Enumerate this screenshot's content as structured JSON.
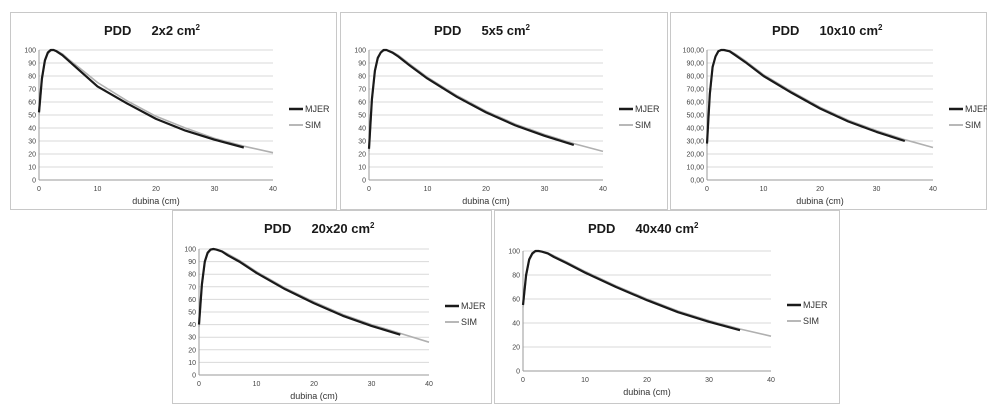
{
  "chart_data": [
    {
      "type": "line",
      "title": "PDD",
      "field_size": "2x2 cm",
      "field_unit_sup": "2",
      "xlabel": "dubina (cm)",
      "ylabel": "",
      "xlim": [
        0,
        40
      ],
      "ylim": [
        0,
        100
      ],
      "x_ticks": [
        "0",
        "10",
        "20",
        "30",
        "40"
      ],
      "y_ticks": [
        "0",
        "10",
        "20",
        "30",
        "40",
        "50",
        "60",
        "70",
        "80",
        "90",
        "100"
      ],
      "legend": "right",
      "series": [
        {
          "name": "MJER",
          "color": "#1a1a1a",
          "x": [
            0,
            0.5,
            1,
            1.5,
            2,
            2.5,
            3,
            4,
            5,
            7,
            10,
            15,
            20,
            25,
            30,
            35
          ],
          "y": [
            52,
            78,
            92,
            98,
            100,
            100,
            99,
            96,
            92,
            84,
            72,
            59,
            47,
            38,
            31,
            25
          ]
        },
        {
          "name": "SIM",
          "color": "#b0b0b0",
          "x": [
            0,
            0.5,
            1,
            1.5,
            2,
            2.5,
            3,
            4,
            5,
            7,
            10,
            15,
            20,
            25,
            30,
            35,
            40
          ],
          "y": [
            50,
            76,
            91,
            97,
            99.5,
            100,
            99.5,
            97,
            93,
            86,
            75,
            61,
            49,
            40,
            32,
            26,
            21
          ]
        }
      ]
    },
    {
      "type": "line",
      "title": "PDD",
      "field_size": "5x5 cm",
      "field_unit_sup": "2",
      "xlabel": "dubina (cm)",
      "ylabel": "",
      "xlim": [
        0,
        40
      ],
      "ylim": [
        0,
        100
      ],
      "x_ticks": [
        "0",
        "10",
        "20",
        "30",
        "40"
      ],
      "y_ticks": [
        "0",
        "10",
        "20",
        "30",
        "40",
        "50",
        "60",
        "70",
        "80",
        "90",
        "100"
      ],
      "legend": "right",
      "series": [
        {
          "name": "MJER",
          "color": "#1a1a1a",
          "x": [
            0,
            0.5,
            1,
            1.5,
            2,
            2.5,
            3,
            4,
            5,
            7,
            10,
            15,
            20,
            25,
            30,
            35
          ],
          "y": [
            24,
            62,
            84,
            94,
            98,
            100,
            100,
            98,
            95,
            88,
            78,
            64,
            52,
            42,
            34,
            27
          ]
        },
        {
          "name": "SIM",
          "color": "#b0b0b0",
          "x": [
            0,
            0.5,
            1,
            1.5,
            2,
            2.5,
            3,
            4,
            5,
            7,
            10,
            15,
            20,
            25,
            30,
            35,
            40
          ],
          "y": [
            22,
            60,
            83,
            93,
            98,
            99.5,
            100,
            98.5,
            96,
            89,
            79,
            65,
            53,
            43,
            35,
            28,
            22
          ]
        }
      ]
    },
    {
      "type": "line",
      "title": "PDD",
      "field_size": "10x10 cm",
      "field_unit_sup": "2",
      "xlabel": "dubina (cm)",
      "ylabel": "",
      "xlim": [
        0,
        40
      ],
      "ylim": [
        0,
        100
      ],
      "x_ticks": [
        "0",
        "10",
        "20",
        "30",
        "40"
      ],
      "y_ticks": [
        "0,00",
        "10,00",
        "20,00",
        "30,00",
        "40,00",
        "50,00",
        "60,00",
        "70,00",
        "80,00",
        "90,00",
        "100,00"
      ],
      "legend": "right",
      "series": [
        {
          "name": "MJER",
          "color": "#1a1a1a",
          "x": [
            0,
            0.5,
            1,
            1.5,
            2,
            2.5,
            3,
            4,
            5,
            7,
            10,
            15,
            20,
            25,
            30,
            35
          ],
          "y": [
            28,
            66,
            87,
            95,
            99,
            100,
            100,
            99,
            96,
            90,
            80,
            67,
            55,
            45,
            37,
            30
          ]
        },
        {
          "name": "SIM",
          "color": "#b0b0b0",
          "x": [
            0,
            0.5,
            1,
            1.5,
            2,
            2.5,
            3,
            4,
            5,
            7,
            10,
            15,
            20,
            25,
            30,
            35,
            40
          ],
          "y": [
            26,
            64,
            86,
            95,
            99,
            100,
            100,
            99.5,
            97,
            91,
            81,
            68,
            56,
            46,
            38,
            31,
            25
          ]
        }
      ]
    },
    {
      "type": "line",
      "title": "PDD",
      "field_size": "20x20 cm",
      "field_unit_sup": "2",
      "xlabel": "dubina (cm)",
      "ylabel": "",
      "xlim": [
        0,
        40
      ],
      "ylim": [
        0,
        100
      ],
      "x_ticks": [
        "0",
        "10",
        "20",
        "30",
        "40"
      ],
      "y_ticks": [
        "0",
        "10",
        "20",
        "30",
        "40",
        "50",
        "60",
        "70",
        "80",
        "90",
        "100"
      ],
      "legend": "right",
      "series": [
        {
          "name": "MJER",
          "color": "#1a1a1a",
          "x": [
            0,
            0.5,
            1,
            1.5,
            2,
            2.5,
            3,
            4,
            5,
            7,
            10,
            15,
            20,
            25,
            30,
            35
          ],
          "y": [
            40,
            72,
            90,
            97,
            99.5,
            100,
            99.5,
            98,
            95,
            90,
            81,
            68,
            57,
            47,
            39,
            32
          ]
        },
        {
          "name": "SIM",
          "color": "#b0b0b0",
          "x": [
            0,
            0.5,
            1,
            1.5,
            2,
            2.5,
            3,
            4,
            5,
            7,
            10,
            15,
            20,
            25,
            30,
            35,
            40
          ],
          "y": [
            38,
            70,
            89,
            96,
            99,
            100,
            99.5,
            98.5,
            96,
            91,
            82,
            69,
            58,
            48,
            40,
            33,
            26
          ]
        }
      ]
    },
    {
      "type": "line",
      "title": "PDD",
      "field_size": "40x40 cm",
      "field_unit_sup": "2",
      "xlabel": "dubina (cm)",
      "ylabel": "",
      "xlim": [
        0,
        40
      ],
      "ylim": [
        0,
        100
      ],
      "x_ticks": [
        "0",
        "10",
        "20",
        "30",
        "40"
      ],
      "y_ticks": [
        "0",
        "20",
        "40",
        "60",
        "80",
        "100"
      ],
      "legend": "right",
      "series": [
        {
          "name": "MJER",
          "color": "#1a1a1a",
          "x": [
            0,
            0.5,
            1,
            1.5,
            2,
            2.5,
            3,
            4,
            5,
            7,
            10,
            15,
            20,
            25,
            30,
            35
          ],
          "y": [
            55,
            80,
            93,
            98,
            100,
            100,
            99.5,
            98,
            95,
            90,
            82,
            70,
            59,
            49,
            41,
            34
          ]
        },
        {
          "name": "SIM",
          "color": "#b0b0b0",
          "x": [
            0,
            0.5,
            1,
            1.5,
            2,
            2.5,
            3,
            4,
            5,
            7,
            10,
            15,
            20,
            25,
            30,
            35,
            40
          ],
          "y": [
            53,
            78,
            92,
            97,
            99.5,
            100,
            99.5,
            98.5,
            96,
            91,
            83,
            71,
            60,
            50,
            42,
            35,
            29
          ]
        }
      ]
    }
  ]
}
